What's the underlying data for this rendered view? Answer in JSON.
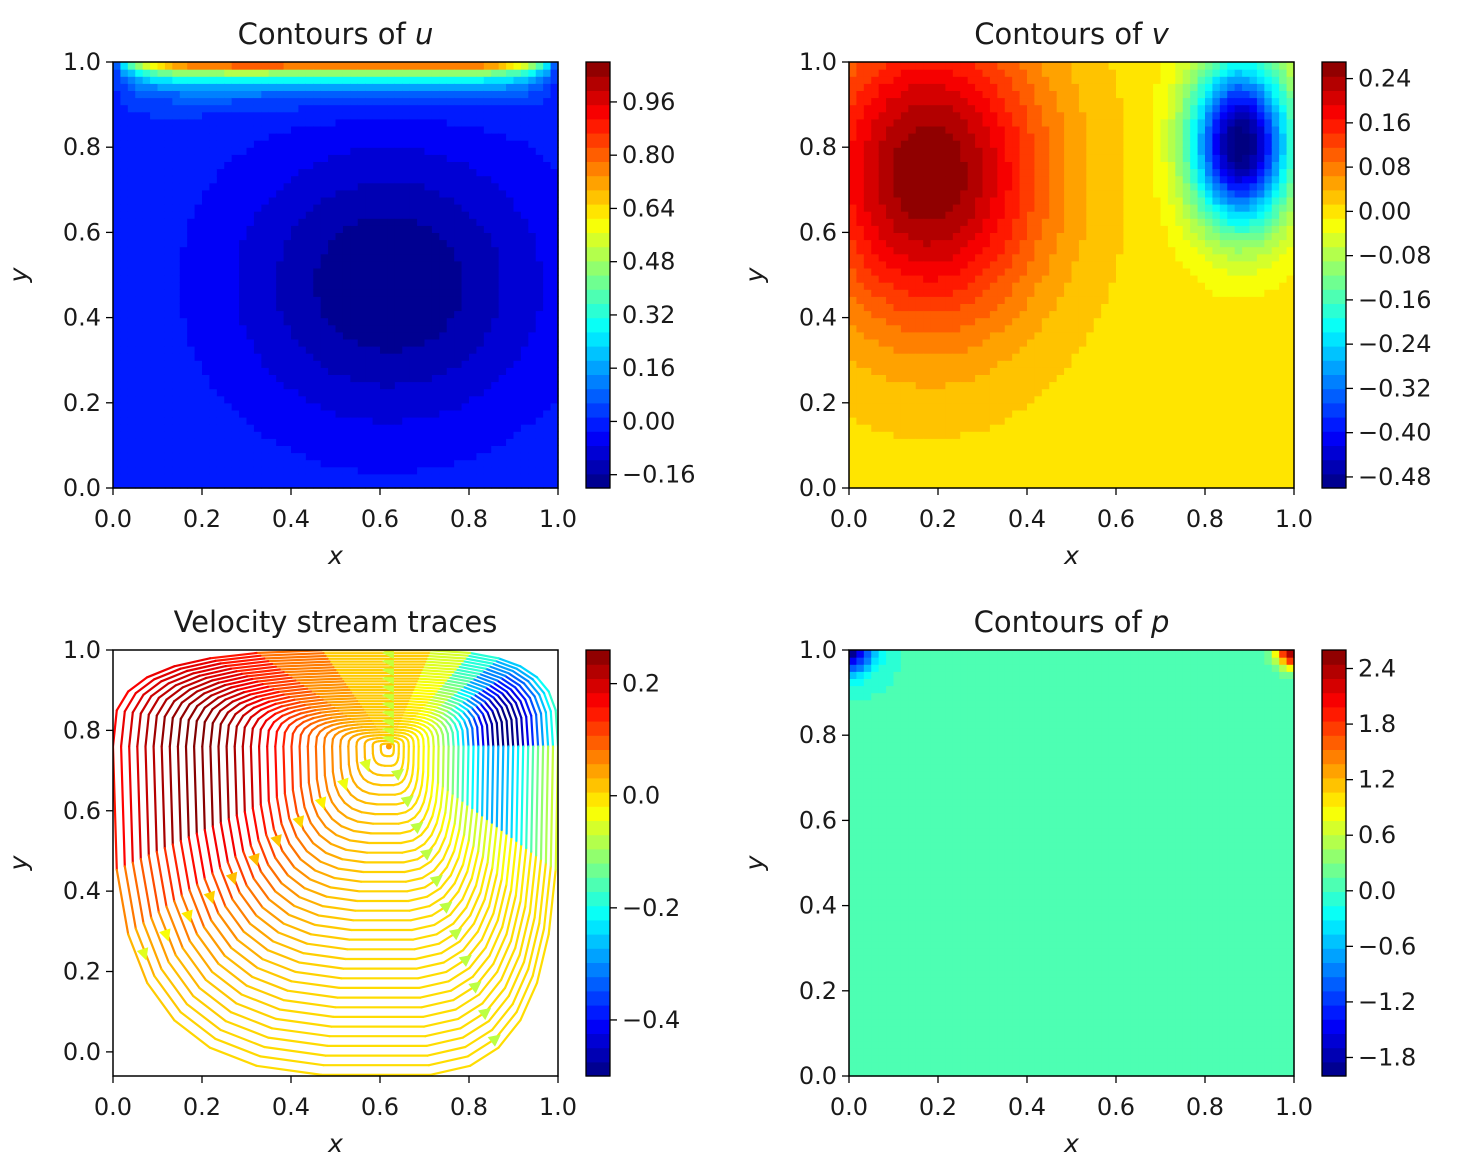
{
  "chart_data": [
    {
      "id": "u",
      "type": "heatmap",
      "title_main": "Contours of ",
      "title_var": "u",
      "xlabel": "x",
      "ylabel": "y",
      "xlim": [
        0,
        1
      ],
      "ylim": [
        0,
        1
      ],
      "xticks": [
        "0.0",
        "0.2",
        "0.4",
        "0.6",
        "0.8",
        "1.0"
      ],
      "yticks": [
        "0.0",
        "0.2",
        "0.4",
        "0.6",
        "0.8",
        "1.0"
      ],
      "colormap": "jet",
      "colorbar": {
        "range": [
          -0.2,
          1.08
        ],
        "ticks": [
          -0.16,
          0.0,
          0.16,
          0.32,
          0.48,
          0.64,
          0.8,
          0.96
        ],
        "tick_labels": [
          "−0.16",
          "0.00",
          "0.16",
          "0.32",
          "0.48",
          "0.64",
          "0.80",
          "0.96"
        ]
      },
      "field_description": "lid-driven cavity x-velocity: 1.0 along top lid, minimum about -0.2 near (0.62, 0.48), near 0 elsewhere"
    },
    {
      "id": "v",
      "type": "heatmap",
      "title_main": "Contours of ",
      "title_var": "v",
      "xlabel": "x",
      "ylabel": "y",
      "xlim": [
        0,
        1
      ],
      "ylim": [
        0,
        1
      ],
      "xticks": [
        "0.0",
        "0.2",
        "0.4",
        "0.6",
        "0.8",
        "1.0"
      ],
      "yticks": [
        "0.0",
        "0.2",
        "0.4",
        "0.6",
        "0.8",
        "1.0"
      ],
      "colormap": "jet",
      "colorbar": {
        "range": [
          -0.5,
          0.27
        ],
        "ticks": [
          -0.48,
          -0.4,
          -0.32,
          -0.24,
          -0.16,
          -0.08,
          0.0,
          0.08,
          0.16,
          0.24
        ],
        "tick_labels": [
          "−0.48",
          "−0.40",
          "−0.32",
          "−0.24",
          "−0.16",
          "−0.08",
          "0.00",
          "0.08",
          "0.16",
          "0.24"
        ]
      },
      "field_description": "y-velocity: max about 0.26 near (0.18, 0.75), min about -0.5 near (0.88, 0.82)"
    },
    {
      "id": "stream",
      "type": "streamplot",
      "title_main": "Velocity stream traces",
      "title_var": "",
      "xlabel": "x",
      "ylabel": "y",
      "xlim": [
        0,
        1
      ],
      "ylim": [
        -0.06,
        1
      ],
      "xticks": [
        "0.0",
        "0.2",
        "0.4",
        "0.6",
        "0.8",
        "1.0"
      ],
      "yticks": [
        "0.0",
        "0.2",
        "0.4",
        "0.6",
        "0.8",
        "1.0"
      ],
      "colormap": "jet",
      "colorbar": {
        "range": [
          -0.5,
          0.26
        ],
        "ticks": [
          -0.4,
          -0.2,
          0.0,
          0.2
        ],
        "tick_labels": [
          "−0.4",
          "−0.2",
          "0.0",
          "0.2"
        ]
      },
      "vortex_center": [
        0.62,
        0.76
      ],
      "color_variable": "v"
    },
    {
      "id": "p",
      "type": "heatmap",
      "title_main": "Contours of ",
      "title_var": "p",
      "xlabel": "x",
      "ylabel": "y",
      "xlim": [
        0,
        1
      ],
      "ylim": [
        0,
        1
      ],
      "xticks": [
        "0.0",
        "0.2",
        "0.4",
        "0.6",
        "0.8",
        "1.0"
      ],
      "yticks": [
        "0.0",
        "0.2",
        "0.4",
        "0.6",
        "0.8",
        "1.0"
      ],
      "colormap": "jet",
      "colorbar": {
        "range": [
          -2.0,
          2.6
        ],
        "ticks": [
          -1.8,
          -1.2,
          -0.6,
          0.0,
          0.6,
          1.2,
          1.8,
          2.4
        ],
        "tick_labels": [
          "−1.8",
          "−1.2",
          "−0.6",
          "0.0",
          "0.6",
          "1.2",
          "1.8",
          "2.4"
        ]
      },
      "field_description": "pressure: near 0 everywhere, min about -2 at top-left corner, max about 2.6 at top-right corner"
    }
  ]
}
